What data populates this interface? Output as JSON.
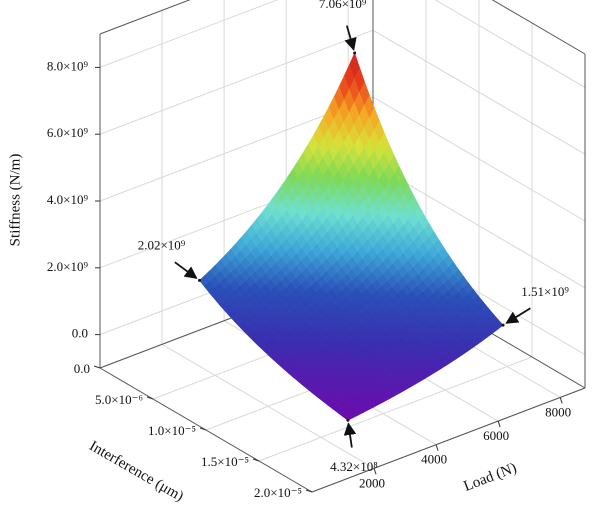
{
  "chart_data": {
    "type": "surface3d",
    "xlabel": "Load (N)",
    "ylabel": "Interference (μm)",
    "zlabel": "Stiffness (N/m)",
    "xlim": [
      0,
      8800
    ],
    "xticks": [
      2000,
      4000,
      6000,
      8000
    ],
    "ylim": [
      0,
      2e-05
    ],
    "yticks": [
      {
        "value": 0,
        "label": "0.0"
      },
      {
        "value": 5e-06,
        "label": "5.0×10⁻⁶"
      },
      {
        "value": 1e-05,
        "label": "1.0×10⁻⁵"
      },
      {
        "value": 1.5e-05,
        "label": "1.5×10⁻⁵"
      },
      {
        "value": 2e-05,
        "label": "2.0×10⁻⁵"
      }
    ],
    "zlim": [
      -1000000000,
      9000000000
    ],
    "zticks": [
      {
        "value": 0,
        "label": "0.0"
      },
      {
        "value": 2000000000,
        "label": "2.0×10⁹"
      },
      {
        "value": 4000000000,
        "label": "4.0×10⁹"
      },
      {
        "value": 6000000000,
        "label": "6.0×10⁹"
      },
      {
        "value": 8000000000,
        "label": "8.0×10⁹"
      }
    ],
    "grid": true,
    "colormap": [
      "#6a0dad",
      "#3a2fb0",
      "#2a50b8",
      "#3fa8d8",
      "#6fe0d0",
      "#7ed957",
      "#d8e23a",
      "#f5a623",
      "#e8401c",
      "#c81e1e"
    ],
    "points": [
      {
        "x": 1500,
        "y": 5e-06,
        "z": 2020000000,
        "label": "2.02×10⁹"
      },
      {
        "x": 1500,
        "y": 1.9e-05,
        "z": 432000000,
        "label": "4.32×10⁸"
      },
      {
        "x": 6500,
        "y": 5e-06,
        "z": 7060000000,
        "label": "7.06×10⁹"
      },
      {
        "x": 6500,
        "y": 1.9e-05,
        "z": 1510000000,
        "label": "1.51×10⁹"
      }
    ]
  }
}
